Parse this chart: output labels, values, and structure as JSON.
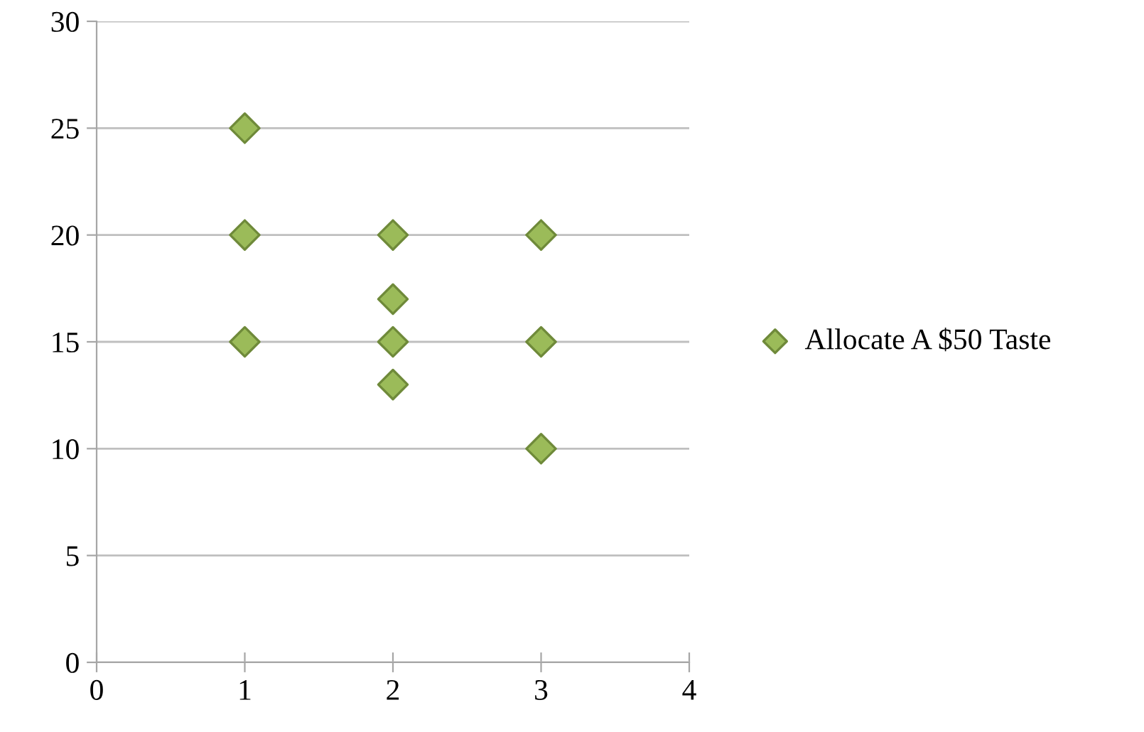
{
  "chart_data": {
    "type": "scatter",
    "x": [
      1,
      1,
      1,
      2,
      2,
      2,
      2,
      3,
      3,
      3
    ],
    "series": [
      {
        "name": "Allocate A $50 Taste",
        "color": "#9bbb59",
        "values": [
          25,
          20,
          15,
          20,
          17,
          15,
          13,
          20,
          15,
          10
        ]
      }
    ],
    "xlim": [
      0,
      4
    ],
    "xticks": [
      0,
      1,
      2,
      3,
      4
    ],
    "ylim": [
      0,
      30
    ],
    "yticks": [
      0,
      5,
      10,
      15,
      20,
      25,
      30
    ],
    "grid": "y",
    "legend": "right",
    "marker": "diamond"
  }
}
